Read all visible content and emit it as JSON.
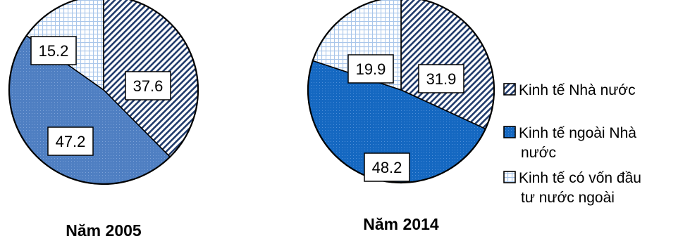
{
  "chart_data": {
    "type": "pie",
    "categories": [
      "Kinh tế Nhà nước",
      "Kinh tế ngoài Nhà nước",
      "Kinh tế có vốn đầu tư nước ngoài"
    ],
    "series": [
      {
        "name": "Năm 2005",
        "values": [
          37.6,
          47.2,
          15.2
        ]
      },
      {
        "name": "Năm 2014",
        "values": [
          31.9,
          48.2,
          19.9
        ]
      }
    ],
    "legend": {
      "placement": "right",
      "items": [
        {
          "lines": [
            "Kinh tế Nhà nước"
          ],
          "pattern": "diagonal-hatch"
        },
        {
          "lines": [
            "Kinh tế ngoài Nhà",
            "nước"
          ],
          "pattern": "blue-dots"
        },
        {
          "lines": [
            "Kinh tế có vốn đầu",
            "tư nước ngoài"
          ],
          "pattern": "grid"
        }
      ]
    },
    "colors": {
      "hatch": "#1f3a6b",
      "pie_2005_blue": "#4f7fc2",
      "pie_2014_blue": "#1568c1",
      "grid": "#a9c6ea",
      "outline": "#000000"
    }
  }
}
